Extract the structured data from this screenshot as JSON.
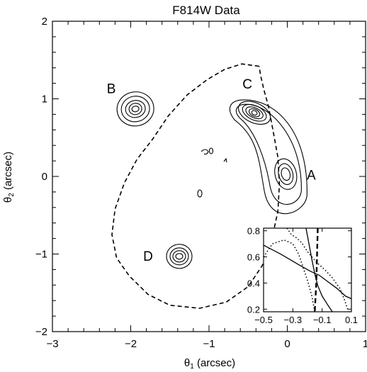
{
  "chart_data": {
    "type": "contour",
    "title": "F814W Data",
    "xlabel": "θ1 (arcsec)",
    "ylabel": "θ2 (arcsec)",
    "xlim": [
      -3,
      1
    ],
    "ylim": [
      -2,
      2
    ],
    "xticks": [
      "−3",
      "−2",
      "−1",
      "0",
      "1"
    ],
    "yticks": [
      "−2",
      "−1",
      "0",
      "1",
      "2"
    ],
    "grid": false,
    "images": [
      {
        "label": "A",
        "x": -0.02,
        "y": 0.03
      },
      {
        "label": "B",
        "x": -1.94,
        "y": 0.87
      },
      {
        "label": "C",
        "x": -0.42,
        "y": 0.82
      },
      {
        "label": "D",
        "x": -1.38,
        "y": -1.03
      }
    ],
    "critical_curve": [
      [
        -0.36,
        1.42
      ],
      [
        -0.58,
        1.45
      ],
      [
        -0.8,
        1.38
      ],
      [
        -1.02,
        1.25
      ],
      [
        -1.28,
        1.05
      ],
      [
        -1.52,
        0.78
      ],
      [
        -1.72,
        0.48
      ],
      [
        -1.92,
        0.22
      ],
      [
        -2.08,
        -0.08
      ],
      [
        -2.2,
        -0.42
      ],
      [
        -2.24,
        -0.75
      ],
      [
        -2.18,
        -1.05
      ],
      [
        -2.02,
        -1.28
      ],
      [
        -1.78,
        -1.52
      ],
      [
        -1.5,
        -1.66
      ],
      [
        -1.12,
        -1.7
      ],
      [
        -0.78,
        -1.62
      ],
      [
        -0.5,
        -1.42
      ],
      [
        -0.32,
        -1.15
      ],
      [
        -0.2,
        -0.82
      ],
      [
        -0.12,
        -0.45
      ],
      [
        -0.1,
        -0.1
      ],
      [
        -0.12,
        0.25
      ],
      [
        -0.18,
        0.58
      ],
      [
        -0.24,
        0.9
      ],
      [
        -0.3,
        1.12
      ],
      [
        -0.34,
        1.3
      ],
      [
        -0.36,
        1.42
      ]
    ],
    "inset": {
      "xlim": [
        -0.5,
        0.1
      ],
      "ylim": [
        0.18,
        0.82
      ],
      "xticks": [
        "−0.5",
        "−0.3",
        "−0.1",
        "0.1"
      ],
      "yticks": [
        "0.2",
        "0.4",
        "0.6",
        "0.8"
      ],
      "dashed": [
        [
          -0.13,
          0.82
        ],
        [
          -0.135,
          0.6
        ],
        [
          -0.14,
          0.4
        ],
        [
          -0.15,
          0.18
        ]
      ],
      "solid": [
        [
          -0.5,
          0.69
        ],
        [
          -0.38,
          0.62
        ],
        [
          -0.26,
          0.54
        ],
        [
          -0.18,
          0.49
        ],
        [
          -0.12,
          0.46
        ],
        [
          -0.06,
          0.41
        ],
        [
          0.0,
          0.36
        ],
        [
          0.06,
          0.3
        ],
        [
          0.1,
          0.28
        ]
      ],
      "solid2": [
        [
          -0.21,
          0.82
        ],
        [
          -0.19,
          0.7
        ],
        [
          -0.17,
          0.58
        ],
        [
          -0.15,
          0.47
        ],
        [
          -0.13,
          0.38
        ],
        [
          -0.1,
          0.3
        ],
        [
          -0.06,
          0.23
        ],
        [
          -0.03,
          0.18
        ]
      ],
      "dotted": [
        [
          -0.5,
          0.6
        ],
        [
          -0.44,
          0.7
        ],
        [
          -0.36,
          0.73
        ],
        [
          -0.3,
          0.7
        ],
        [
          -0.26,
          0.62
        ],
        [
          -0.23,
          0.52
        ],
        [
          -0.2,
          0.42
        ],
        [
          -0.17,
          0.3
        ],
        [
          -0.15,
          0.18
        ]
      ],
      "dotted2": [
        [
          -0.34,
          0.82
        ],
        [
          -0.31,
          0.77
        ],
        [
          -0.28,
          0.75
        ],
        [
          -0.24,
          0.71
        ],
        [
          -0.2,
          0.64
        ],
        [
          -0.14,
          0.56
        ],
        [
          -0.08,
          0.5
        ],
        [
          -0.03,
          0.44
        ],
        [
          0.02,
          0.36
        ],
        [
          0.05,
          0.28
        ],
        [
          0.08,
          0.18
        ]
      ]
    }
  }
}
